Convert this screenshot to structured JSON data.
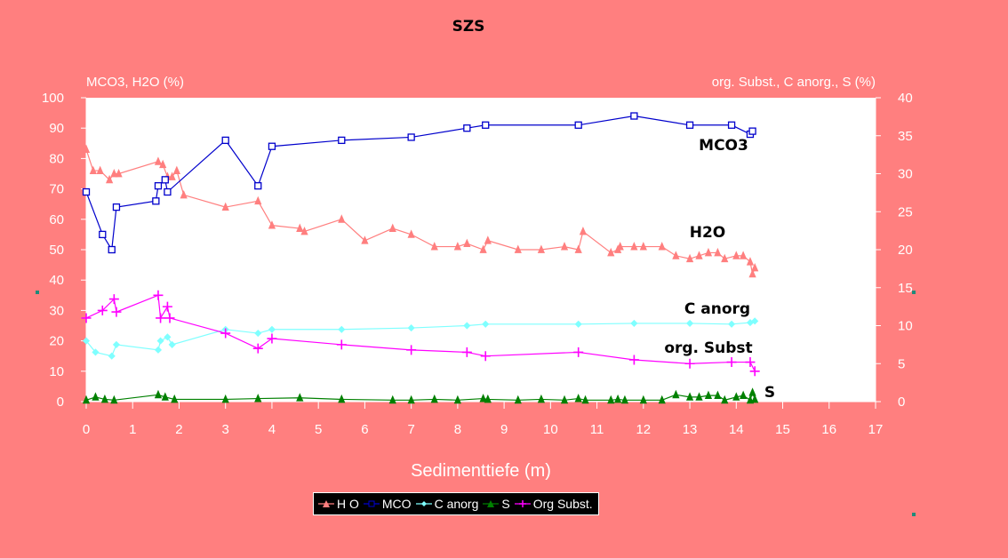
{
  "page": {
    "title": "SZS"
  },
  "chart_data": {
    "type": "line",
    "title": "SZS",
    "xlabel": "Sedimenttiefe (m)",
    "ylabel_left": "MCO3, H2O (%)",
    "ylabel_right": "org. Subst., C anorg., S (%)",
    "xlim": [
      0,
      17
    ],
    "ylim_left": [
      0,
      100
    ],
    "ylim_right": [
      0,
      40
    ],
    "x_ticks": [
      "0",
      "1",
      "2",
      "3",
      "4",
      "5",
      "6",
      "7",
      "8",
      "9",
      "10",
      "11",
      "12",
      "13",
      "14",
      "15",
      "16",
      "17"
    ],
    "y_ticks_left": [
      "0",
      "10",
      "20",
      "30",
      "40",
      "50",
      "60",
      "70",
      "80",
      "90",
      "100"
    ],
    "y_ticks_right": [
      "0",
      "5",
      "10",
      "15",
      "20",
      "25",
      "30",
      "35",
      "40"
    ],
    "grid": false,
    "legend_placement": "bottom",
    "series": [
      {
        "name": "H O",
        "axis": "left",
        "color": "#ff7f7f",
        "marker": "triangle",
        "label": "H2O",
        "x": [
          0,
          0.15,
          0.3,
          0.5,
          0.6,
          0.7,
          1.55,
          1.65,
          1.75,
          1.85,
          1.95,
          2.1,
          3.0,
          3.7,
          4.0,
          4.6,
          4.7,
          5.5,
          6.0,
          6.6,
          7.0,
          7.5,
          8.0,
          8.2,
          8.55,
          8.65,
          9.3,
          9.8,
          10.3,
          10.6,
          10.7,
          11.3,
          11.45,
          11.5,
          11.8,
          12.0,
          12.4,
          12.7,
          13.0,
          13.2,
          13.4,
          13.6,
          13.75,
          14.0,
          14.15,
          14.3,
          14.35,
          14.4
        ],
        "values": [
          83,
          76,
          76,
          73,
          75,
          75,
          79,
          78,
          74,
          74,
          76,
          68,
          64,
          66,
          58,
          57,
          56,
          60,
          53,
          57,
          55,
          51,
          51,
          52,
          50,
          53,
          50,
          50,
          51,
          50,
          56,
          49,
          50,
          51,
          51,
          51,
          51,
          48,
          47,
          48,
          49,
          49,
          47,
          48,
          48,
          46,
          42,
          44
        ]
      },
      {
        "name": "MCO",
        "axis": "left",
        "color": "#0000cc",
        "marker": "square",
        "label": "MCO3",
        "x": [
          0,
          0.35,
          0.55,
          0.65,
          1.5,
          1.55,
          1.7,
          1.75,
          3.0,
          3.7,
          4.0,
          5.5,
          7.0,
          8.2,
          8.6,
          10.6,
          11.8,
          13.0,
          13.9,
          14.3,
          14.35
        ],
        "values": [
          69,
          55,
          50,
          64,
          66,
          71,
          73,
          69,
          86,
          71,
          84,
          86,
          87,
          90,
          91,
          91,
          94,
          91,
          91,
          88,
          89
        ]
      },
      {
        "name": "C anorg",
        "axis": "right",
        "color": "#7fffff",
        "marker": "diamond",
        "label": "C anorg",
        "x": [
          0,
          0.2,
          0.55,
          0.65,
          1.55,
          1.6,
          1.75,
          1.85,
          3.0,
          3.7,
          4.0,
          5.5,
          7.0,
          8.2,
          8.6,
          10.6,
          11.8,
          13.0,
          13.9,
          14.3,
          14.4
        ],
        "values": [
          8,
          6.5,
          6,
          7.5,
          6.8,
          8,
          8.5,
          7.5,
          9.5,
          9,
          9.5,
          9.5,
          9.7,
          10,
          10.2,
          10.2,
          10.3,
          10.3,
          10.2,
          10.4,
          10.6
        ]
      },
      {
        "name": "S",
        "axis": "right",
        "color": "#008000",
        "marker": "triangle",
        "label": "S",
        "x": [
          0,
          0.2,
          0.4,
          0.6,
          1.55,
          1.7,
          1.9,
          3.0,
          3.7,
          4.6,
          5.5,
          6.6,
          7.0,
          7.5,
          8.0,
          8.55,
          8.65,
          9.3,
          9.8,
          10.3,
          10.6,
          10.75,
          11.3,
          11.45,
          11.6,
          12.0,
          12.4,
          12.7,
          13.0,
          13.2,
          13.4,
          13.6,
          13.75,
          14.0,
          14.15,
          14.3,
          14.35,
          14.4
        ],
        "values": [
          0.2,
          0.6,
          0.3,
          0.2,
          0.9,
          0.6,
          0.3,
          0.3,
          0.4,
          0.5,
          0.3,
          0.2,
          0.2,
          0.3,
          0.2,
          0.4,
          0.3,
          0.2,
          0.3,
          0.2,
          0.4,
          0.2,
          0.2,
          0.3,
          0.2,
          0.2,
          0.2,
          0.9,
          0.6,
          0.6,
          0.8,
          0.8,
          0.2,
          0.6,
          0.8,
          0.2,
          1.2,
          0.3
        ]
      },
      {
        "name": "Org Subst.",
        "axis": "right",
        "color": "#ff00ff",
        "marker": "plus",
        "label": "org. Subst",
        "x": [
          0,
          0.35,
          0.6,
          0.65,
          1.55,
          1.6,
          1.75,
          1.8,
          3.0,
          3.7,
          4.0,
          5.5,
          7.0,
          8.2,
          8.6,
          10.6,
          11.8,
          13.0,
          13.9,
          14.3,
          14.4
        ],
        "values": [
          11,
          12,
          13.5,
          11.8,
          14,
          11,
          12.5,
          11,
          9,
          7,
          8.3,
          7.5,
          6.8,
          6.5,
          6,
          6.5,
          5.5,
          5,
          5.2,
          5.2,
          4
        ]
      }
    ]
  },
  "legend": {
    "items": [
      {
        "label": "H O",
        "color": "#ff7f7f",
        "icon": "triangle-marker-icon"
      },
      {
        "label": "MCO",
        "color": "#0000cc",
        "icon": "square-marker-icon"
      },
      {
        "label": "C anorg",
        "color": "#7fffff",
        "icon": "diamond-marker-icon"
      },
      {
        "label": "S",
        "color": "#008000",
        "icon": "triangle-marker-icon"
      },
      {
        "label": "Org Subst.",
        "color": "#ff00ff",
        "icon": "plus-marker-icon"
      }
    ]
  }
}
